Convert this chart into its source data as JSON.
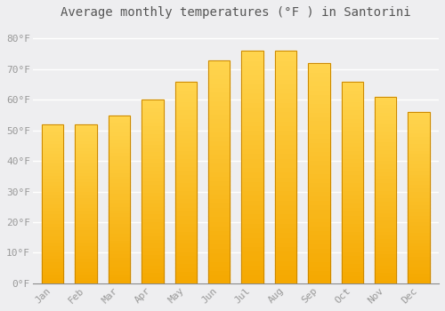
{
  "months": [
    "Jan",
    "Feb",
    "Mar",
    "Apr",
    "May",
    "Jun",
    "Jul",
    "Aug",
    "Sep",
    "Oct",
    "Nov",
    "Dec"
  ],
  "values": [
    52,
    52,
    55,
    60,
    66,
    73,
    76,
    76,
    72,
    66,
    61,
    56
  ],
  "title": "Average monthly temperatures (°F ) in Santorini",
  "bar_color_bottom": "#F5A800",
  "bar_color_top": "#FFD54F",
  "bar_edge_color": "#CC8800",
  "background_color": "#EEEEF0",
  "grid_color": "#FFFFFF",
  "yticks": [
    0,
    10,
    20,
    30,
    40,
    50,
    60,
    70,
    80
  ],
  "ytick_labels": [
    "0°F",
    "10°F",
    "20°F",
    "30°F",
    "40°F",
    "50°F",
    "60°F",
    "70°F",
    "80°F"
  ],
  "ylim": [
    0,
    85
  ],
  "title_fontsize": 10,
  "tick_fontsize": 8,
  "tick_color": "#999999",
  "font_family": "monospace",
  "bar_width": 0.65
}
